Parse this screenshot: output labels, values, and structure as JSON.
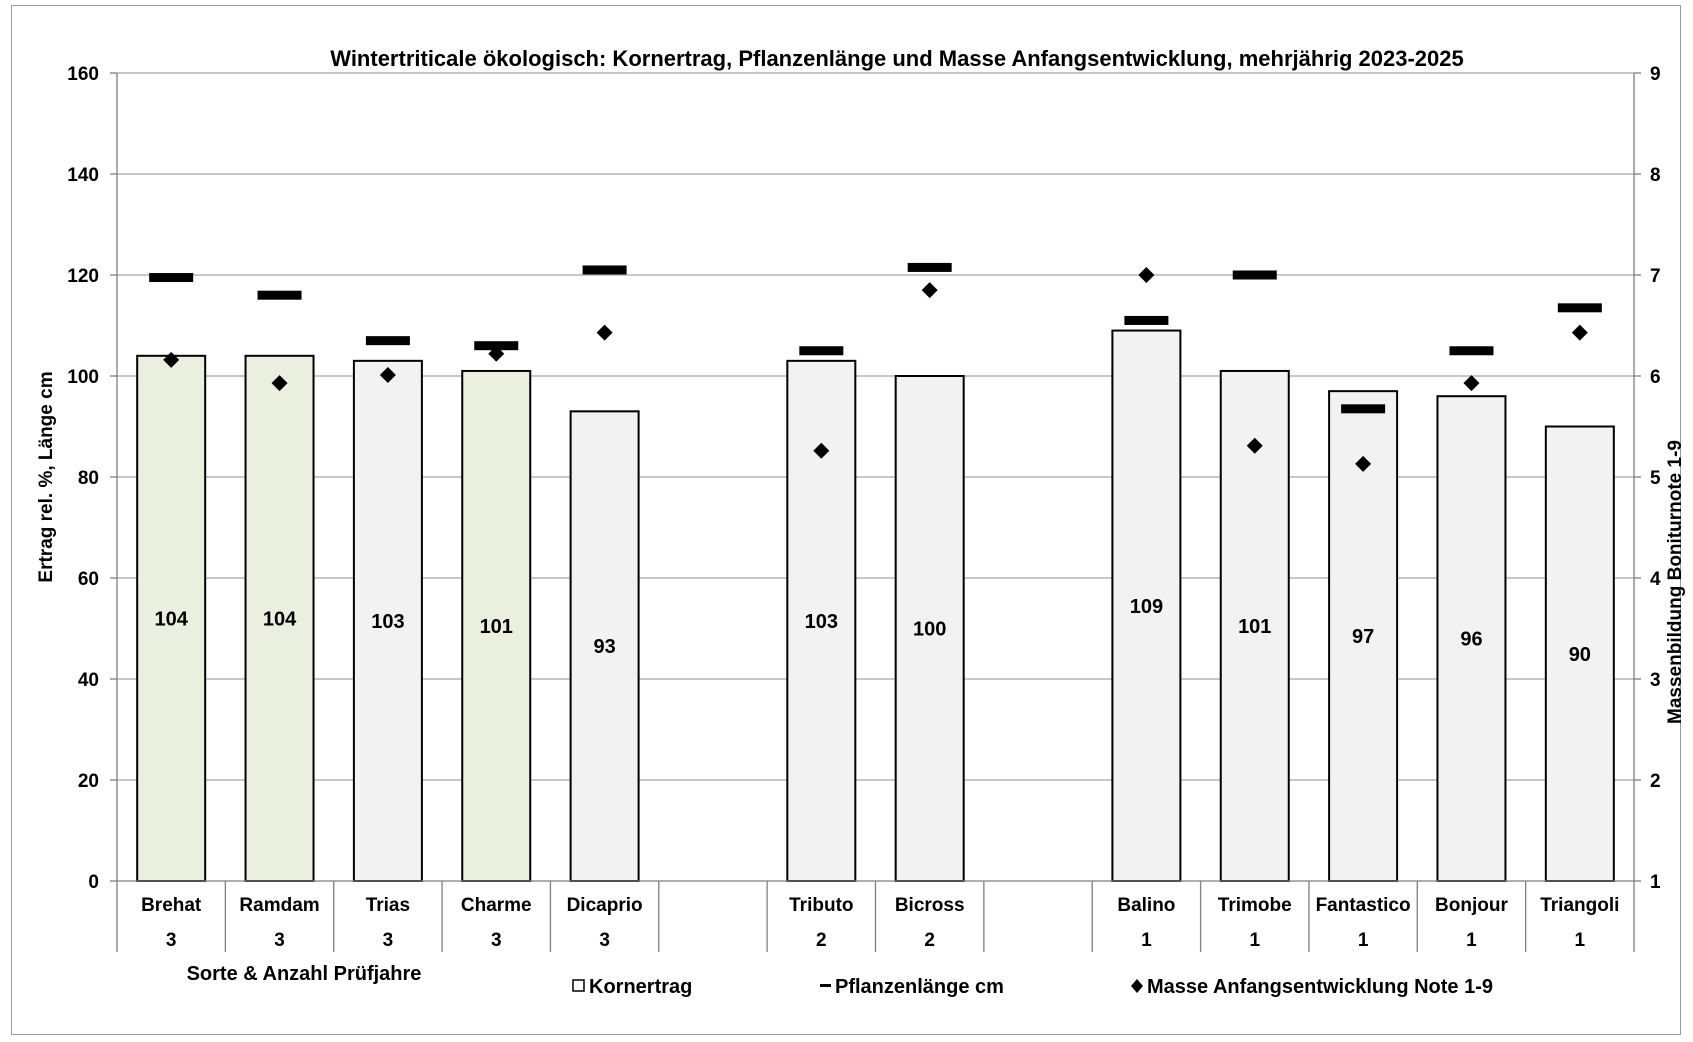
{
  "chart_data": {
    "type": "bar",
    "title": "Wintertriticale ökologisch: Kornertrag, Pflanzenlänge und Masse Anfangsentwicklung, mehrjährig 2023-2025",
    "ylabel_left": "Ertrag rel. %, Länge cm",
    "ylabel_right": "Massenbildung Boniturnote 1-9",
    "xlabel": "Sorte & Anzahl Prüfjahre",
    "y_left_lim": [
      0,
      160
    ],
    "y_left_ticks": [
      "0",
      "20",
      "40",
      "60",
      "80",
      "100",
      "120",
      "140",
      "160"
    ],
    "y_right_lim": [
      1,
      9
    ],
    "y_right_ticks": [
      "1",
      "2",
      "3",
      "4",
      "5",
      "6",
      "7",
      "8",
      "9"
    ],
    "grid": true,
    "legend_position": "bottom",
    "legend": [
      {
        "symbol": "□",
        "label": "Kornertrag"
      },
      {
        "symbol": "–",
        "label": "Pflanzenlänge cm"
      },
      {
        "symbol": "◆",
        "label": "Masse Anfangsentwicklung Note 1-9"
      }
    ],
    "colors": {
      "highlight": "#ebefdf",
      "default": "#f2f2f2",
      "marker": "#000000",
      "grid": "#a6a6a6"
    },
    "categories": [
      "Brehat",
      "Ramdam",
      "Trias",
      "Charme",
      "Dicaprio",
      "",
      "Tributo",
      "Bicross",
      "",
      "Balino",
      "Trimobe",
      "Fantastico",
      "Bonjour",
      "Triangoli"
    ],
    "years": [
      "3",
      "3",
      "3",
      "3",
      "3",
      "",
      "2",
      "2",
      "",
      "1",
      "1",
      "1",
      "1",
      "1"
    ],
    "highlighted": [
      true,
      true,
      false,
      true,
      false,
      false,
      false,
      false,
      false,
      false,
      false,
      false,
      false,
      false
    ],
    "series": [
      {
        "name": "Kornertrag",
        "kind": "bar",
        "axis": "left",
        "values": [
          104,
          104,
          103,
          101,
          93,
          null,
          103,
          100,
          null,
          109,
          101,
          97,
          96,
          90
        ],
        "labels": [
          "104",
          "104",
          "103",
          "101",
          "93",
          "",
          "103",
          "100",
          "",
          "109",
          "101",
          "97",
          "96",
          "90"
        ]
      },
      {
        "name": "Pflanzenlänge cm",
        "kind": "dash",
        "axis": "left",
        "values": [
          119.5,
          116,
          107,
          106,
          121,
          null,
          105,
          121.5,
          null,
          111,
          120,
          93.5,
          105,
          113.5
        ]
      },
      {
        "name": "Masse Anfangsentwicklung Note 1-9",
        "kind": "diamond",
        "axis": "right",
        "values": [
          6.16,
          5.93,
          6.01,
          6.22,
          6.43,
          null,
          5.26,
          6.85,
          null,
          7.0,
          5.31,
          5.13,
          5.93,
          6.43
        ]
      }
    ]
  }
}
